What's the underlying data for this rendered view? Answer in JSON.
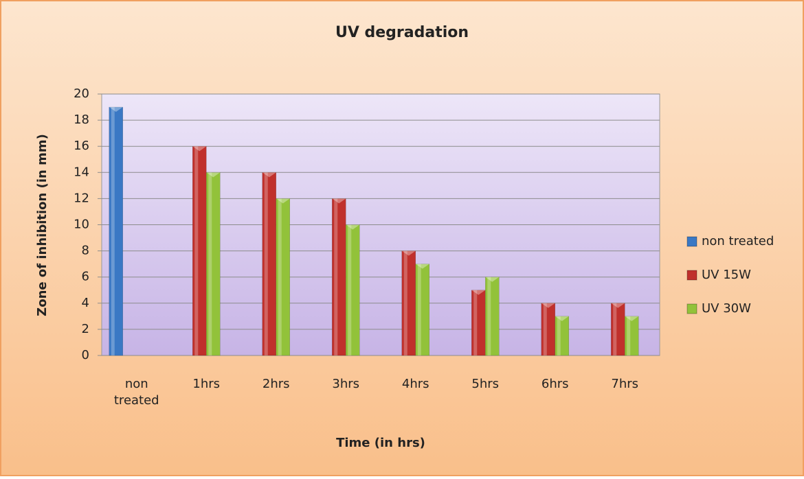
{
  "chart_data": {
    "type": "bar",
    "title": "UV degradation",
    "x_label": "Time (in hrs)",
    "y_label": "Zone of inhibition (in mm)",
    "categories": [
      "non treated",
      "1hrs",
      "2hrs",
      "3hrs",
      "4hrs",
      "5hrs",
      "6hrs",
      "7hrs"
    ],
    "series": [
      {
        "name": "non treated",
        "color": "#3a78c4",
        "values": [
          19,
          null,
          null,
          null,
          null,
          null,
          null,
          null
        ]
      },
      {
        "name": "UV 15W",
        "color": "#c0302c",
        "values": [
          null,
          16,
          14,
          12,
          8,
          5,
          4,
          4
        ]
      },
      {
        "name": "UV 30W",
        "color": "#92c23a",
        "values": [
          null,
          14,
          12,
          10,
          7,
          6,
          3,
          3
        ]
      }
    ],
    "ylim": [
      0,
      20
    ],
    "yticks": [
      0,
      2,
      4,
      6,
      8,
      10,
      12,
      14,
      16,
      18,
      20
    ],
    "grid": true,
    "legend": "right"
  }
}
